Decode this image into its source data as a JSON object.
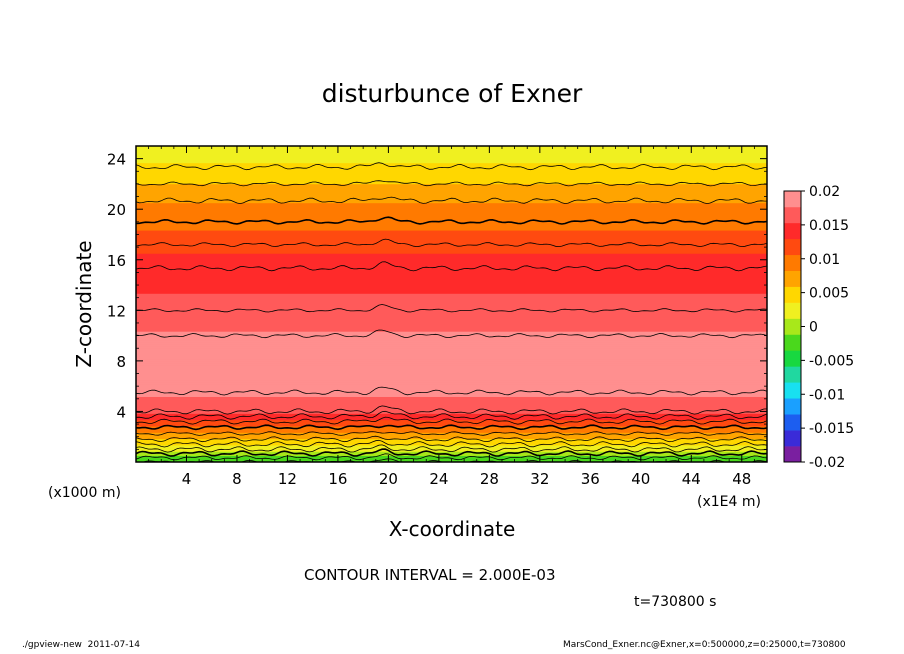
{
  "chart_data": {
    "type": "heatmap",
    "title": "disturbunce of Exner",
    "xlabel": "X-coordinate",
    "ylabel": "Z-coordinate",
    "x_unit": "(x1E4 m)",
    "y_unit": "(x1000 m)",
    "xlim": [
      0,
      50
    ],
    "ylim": [
      0,
      25
    ],
    "x_ticks": [
      "4",
      "8",
      "12",
      "16",
      "20",
      "24",
      "28",
      "32",
      "36",
      "40",
      "44",
      "48"
    ],
    "y_ticks": [
      "4",
      "8",
      "12",
      "16",
      "20",
      "24"
    ],
    "colorbar": {
      "ticks": [
        "0.02",
        "0.015",
        "0.01",
        "0.005",
        "0",
        "-0.005",
        "-0.01",
        "-0.015",
        "-0.02"
      ],
      "range": [
        -0.02,
        0.02
      ],
      "colors": [
        "#7a1fa0",
        "#3a2bd8",
        "#1c5ef0",
        "#1aa0ff",
        "#18e0f0",
        "#20d8a0",
        "#18d840",
        "#4ad81c",
        "#a8e81a",
        "#f0f020",
        "#ffd700",
        "#ffa400",
        "#ff7a00",
        "#ff4a10",
        "#ff2a2a",
        "#ff5a5a",
        "#ff8f8f"
      ]
    },
    "profile": {
      "z": [
        0,
        1,
        2,
        3,
        4,
        5,
        6,
        7,
        8,
        9,
        10,
        12,
        14,
        16,
        18,
        20,
        22,
        24,
        25
      ],
      "value": [
        -0.004,
        0.002,
        0.007,
        0.011,
        0.016,
        0.0175,
        0.0185,
        0.0195,
        0.0195,
        0.019,
        0.018,
        0.016,
        0.015,
        0.0135,
        0.011,
        0.009,
        0.006,
        0.003,
        0.002
      ]
    },
    "contour_interval": "2.000E-03",
    "time": "t=730800 s"
  },
  "footer": {
    "left": "./gpview-new  2011-07-14",
    "right": "MarsCond_Exner.nc@Exner,x=0:500000,z=0:25000,t=730800"
  }
}
